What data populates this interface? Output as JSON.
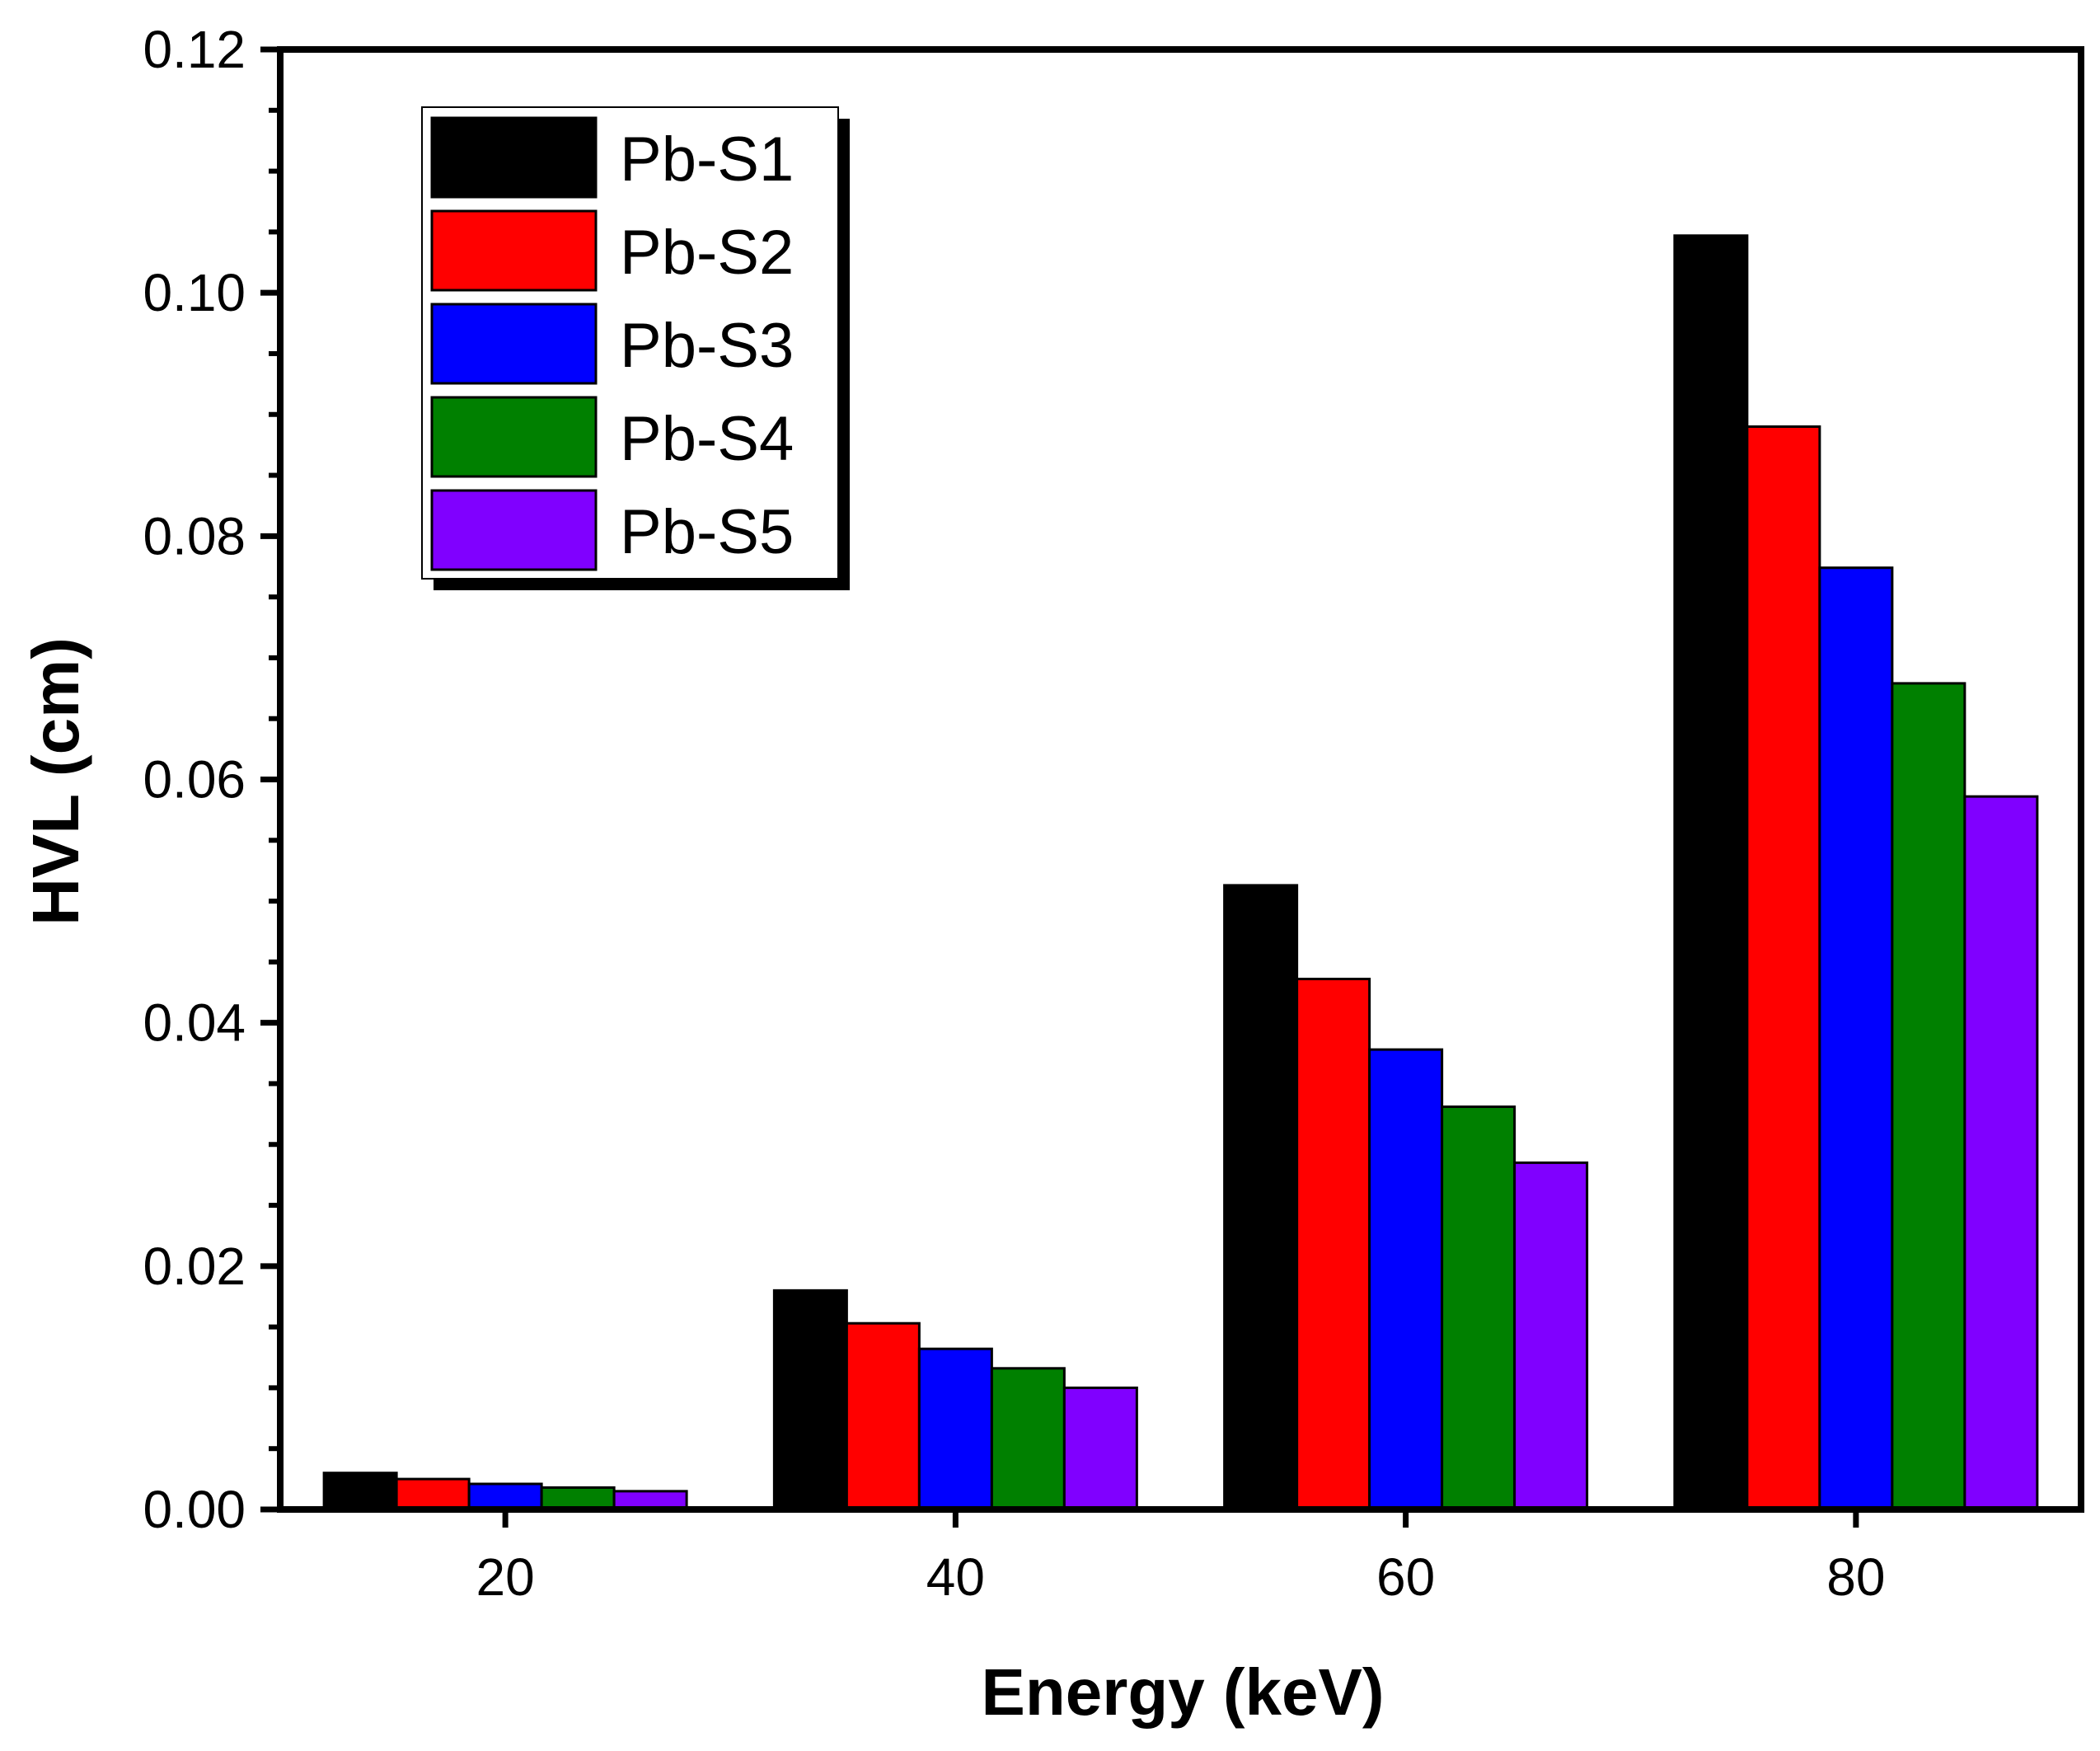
{
  "chart_data": {
    "type": "bar",
    "title": "",
    "xlabel": "Energy (keV)",
    "ylabel": "HVL (cm)",
    "categories": [
      "20",
      "40",
      "60",
      "80"
    ],
    "x_values": [
      20,
      40,
      60,
      80
    ],
    "xlim": [
      10,
      90
    ],
    "ylim": [
      0,
      0.12
    ],
    "y_major_ticks": [
      0.0,
      0.02,
      0.04,
      0.06,
      0.08,
      0.1,
      0.12
    ],
    "y_tick_labels": [
      "0.00",
      "0.02",
      "0.04",
      "0.06",
      "0.08",
      "0.10",
      "0.12"
    ],
    "x_tick_labels": [
      "20",
      "40",
      "60",
      "80"
    ],
    "grid": false,
    "legend_position": "top-left",
    "series": [
      {
        "name": "Pb-S1",
        "color": "#000000",
        "values": [
          0.003,
          0.018,
          0.0513,
          0.1047
        ]
      },
      {
        "name": "Pb-S2",
        "color": "#ff0000",
        "values": [
          0.0025,
          0.0153,
          0.0436,
          0.089
        ]
      },
      {
        "name": "Pb-S3",
        "color": "#0000ff",
        "values": [
          0.0021,
          0.0132,
          0.0378,
          0.0774
        ]
      },
      {
        "name": "Pb-S4",
        "color": "#008000",
        "values": [
          0.0018,
          0.0116,
          0.0331,
          0.0679
        ]
      },
      {
        "name": "Pb-S5",
        "color": "#8000ff",
        "values": [
          0.0015,
          0.01,
          0.0285,
          0.0586
        ]
      }
    ]
  }
}
